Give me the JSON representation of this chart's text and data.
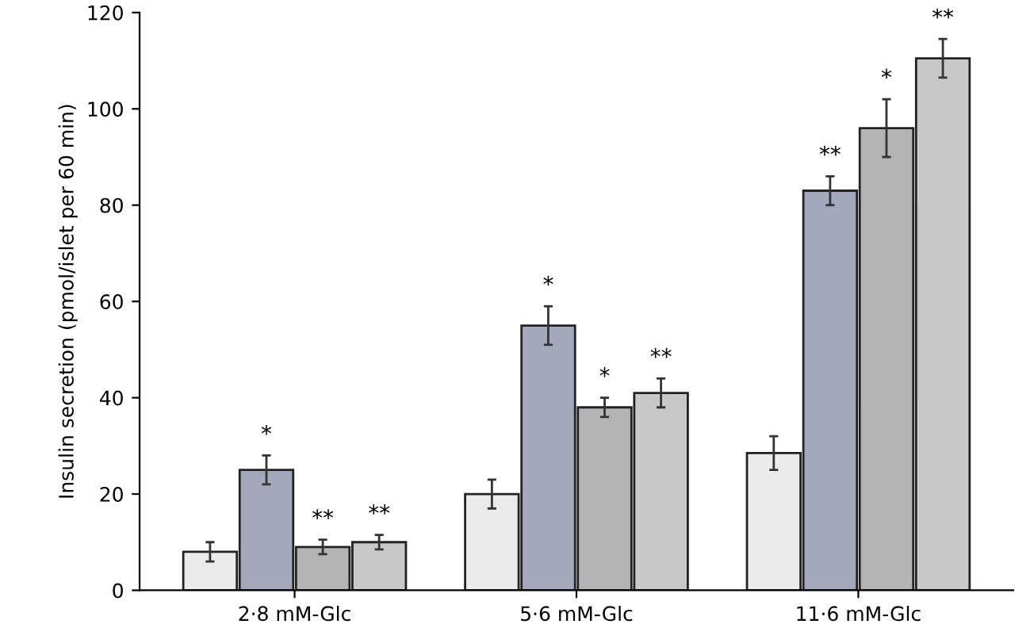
{
  "chart_data": {
    "type": "bar",
    "ylabel": "Insulin secretion (pmol/islet per 60 min)",
    "categories": [
      "2·8 mM-Glc",
      "5·6 mM-Glc",
      "11·6 mM-Glc"
    ],
    "series": [
      {
        "color": "#ebebeb",
        "values": [
          8,
          20,
          28.5
        ],
        "errors": [
          2,
          3,
          3.5
        ],
        "value_labels": [
          null,
          null,
          null
        ]
      },
      {
        "color": "#a4a8bc",
        "values": [
          25,
          55,
          83
        ],
        "errors": [
          3,
          4,
          3
        ],
        "value_labels": [
          "*",
          "*",
          "**"
        ]
      },
      {
        "color": "#b4b4b4",
        "values": [
          9,
          38,
          96
        ],
        "errors": [
          1.5,
          2,
          6
        ],
        "value_labels": [
          "**",
          "*",
          "*"
        ]
      },
      {
        "color": "#c8c8c8",
        "values": [
          10,
          41,
          110.5
        ],
        "errors": [
          1.5,
          3,
          4
        ],
        "value_labels": [
          "**",
          "**",
          "**"
        ]
      }
    ],
    "ylim": [
      0,
      120
    ],
    "yticks": [
      0,
      20,
      40,
      60,
      80,
      100,
      120
    ],
    "grid": false,
    "legend": false
  }
}
